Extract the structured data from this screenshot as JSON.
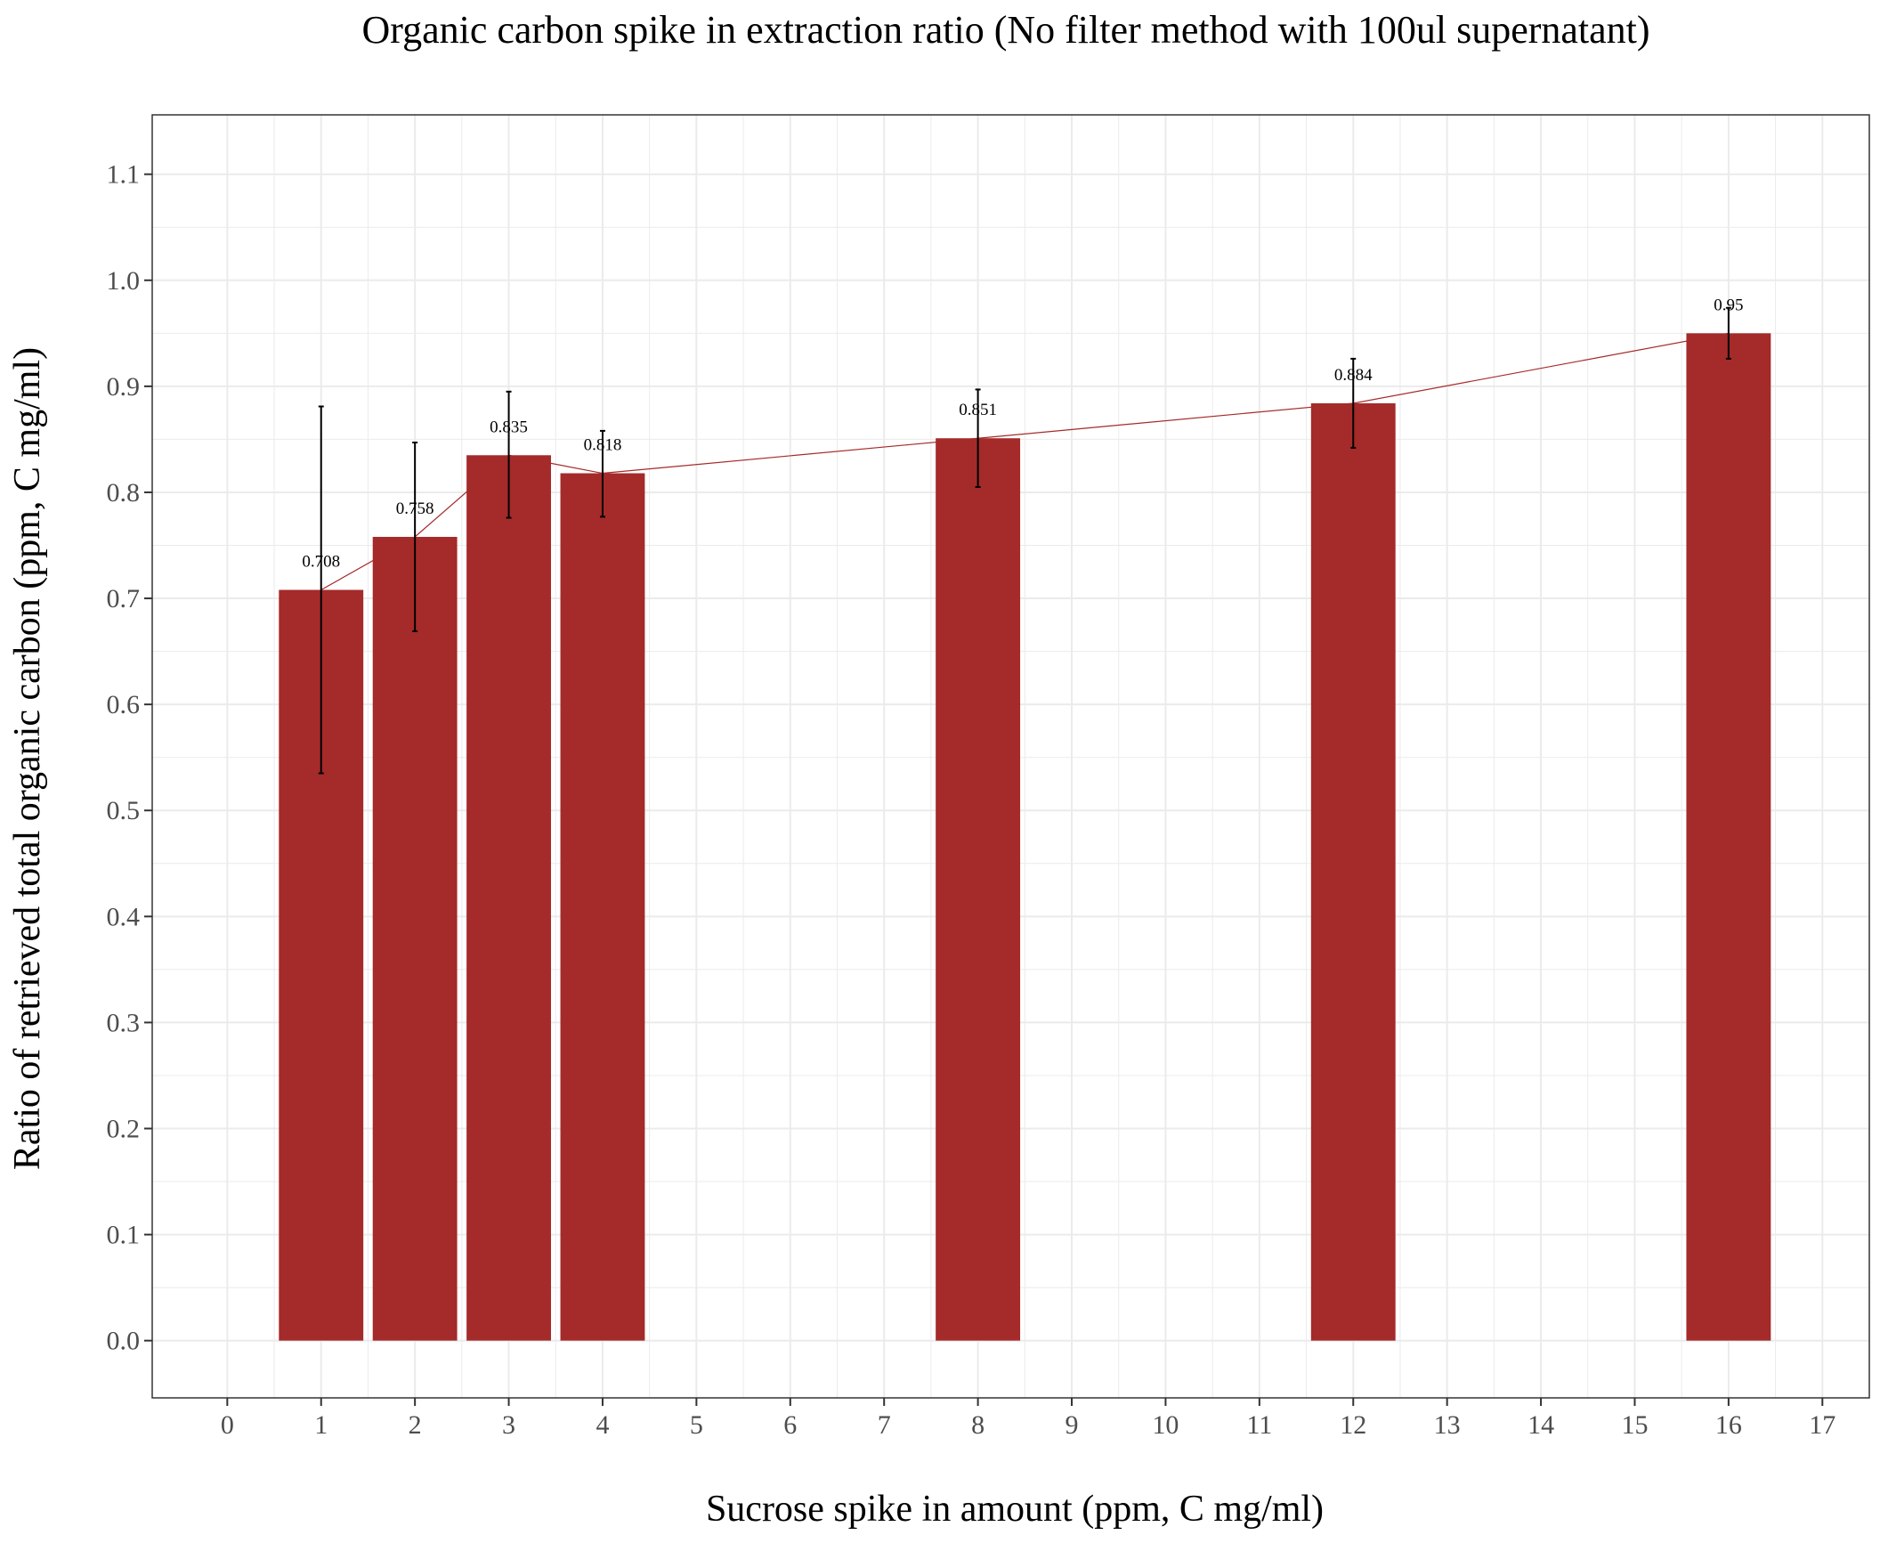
{
  "chart_data": {
    "type": "bar",
    "title": "Organic carbon spike in extraction ratio (No filter method with 100ul supernatant)",
    "xlabel": "Sucrose spike in amount (ppm, C mg/ml)",
    "ylabel": "Ratio of retrieved total organic carbon (ppm, C mg/ml)",
    "x": [
      1,
      2,
      3,
      4,
      8,
      12,
      16
    ],
    "values": [
      0.708,
      0.758,
      0.835,
      0.818,
      0.851,
      0.884,
      0.95
    ],
    "value_labels": [
      "0.708",
      "0.758",
      "0.835",
      "0.818",
      "0.851",
      "0.884",
      "0.95"
    ],
    "error_low": [
      0.535,
      0.669,
      0.776,
      0.777,
      0.805,
      0.842,
      0.926
    ],
    "error_high": [
      0.881,
      0.847,
      0.895,
      0.858,
      0.897,
      0.926,
      0.974
    ],
    "xlim": [
      -0.8,
      17.5
    ],
    "ylim": [
      -0.054,
      1.156
    ],
    "x_ticks": [
      0,
      1,
      2,
      3,
      4,
      5,
      6,
      7,
      8,
      9,
      10,
      11,
      12,
      13,
      14,
      15,
      16,
      17
    ],
    "x_tick_labels": [
      "0",
      "1",
      "2",
      "3",
      "4",
      "5",
      "6",
      "7",
      "8",
      "9",
      "10",
      "11",
      "12",
      "13",
      "14",
      "15",
      "16",
      "17"
    ],
    "y_ticks": [
      0,
      0.1,
      0.2,
      0.3,
      0.4,
      0.5,
      0.6,
      0.7,
      0.8,
      0.9,
      1.0,
      1.1
    ],
    "y_tick_labels": [
      "0.0",
      "0.1",
      "0.2",
      "0.3",
      "0.4",
      "0.5",
      "0.6",
      "0.7",
      "0.8",
      "0.9",
      "1.0",
      "1.1"
    ],
    "bar_width": 0.9,
    "bar_color": "#a52a2a",
    "line_color": "#a52a2a",
    "error_bar_color": "#000000",
    "grid": true,
    "grid_color": "#ebebeb",
    "legend": "none"
  }
}
